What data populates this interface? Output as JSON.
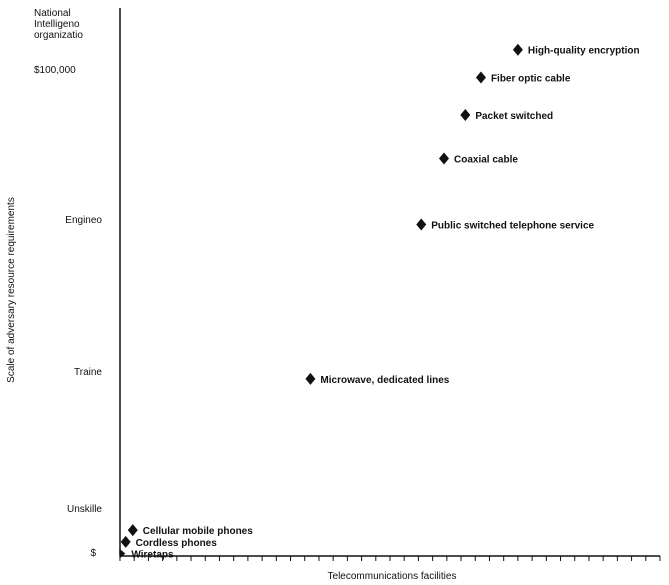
{
  "chart_data": {
    "type": "scatter",
    "title": "",
    "xlabel": "Telecommunications facilities",
    "ylabel": "Scale of adversary resource requirements",
    "y_categories": [
      "$",
      "Unskilled",
      "Trained",
      "Engineer",
      "$100,000",
      "National Intelligence organization"
    ],
    "y_tick_text": {
      "0": "$",
      "1": "Unskille",
      "2": "Traine",
      "3": "Engineo",
      "4": "$100,000",
      "5": [
        "National",
        "Intelligeno",
        "organizatio"
      ]
    },
    "points": [
      {
        "label": "Wiretaps",
        "x": 0.1,
        "y": 0.05,
        "marker": "triangle"
      },
      {
        "label": "Cordless phones",
        "x": 0.4,
        "y": 0.3,
        "marker": "diamond"
      },
      {
        "label": "Cellular mobile phones",
        "x": 0.9,
        "y": 0.55,
        "marker": "diamond"
      },
      {
        "label": "Microwave, dedicated lines",
        "x": 13.4,
        "y": 1.95,
        "marker": "diamond"
      },
      {
        "label": "Public switched telephone service",
        "x": 21.2,
        "y": 2.97,
        "marker": "diamond"
      },
      {
        "label": "Coaxial cable",
        "x": 22.8,
        "y": 3.41,
        "marker": "diamond"
      },
      {
        "label": "Packet switched",
        "x": 24.3,
        "y": 3.7,
        "marker": "diamond"
      },
      {
        "label": "Fiber optic cable",
        "x": 25.4,
        "y": 3.95,
        "marker": "diamond"
      },
      {
        "label": "High-quality encryption",
        "x": 28.0,
        "y": 4.39,
        "marker": "diamond"
      }
    ],
    "xlim": [
      0,
      38
    ],
    "ylim": [
      0,
      5
    ],
    "x_tick_count": 38,
    "grid": false,
    "legend": "none"
  }
}
